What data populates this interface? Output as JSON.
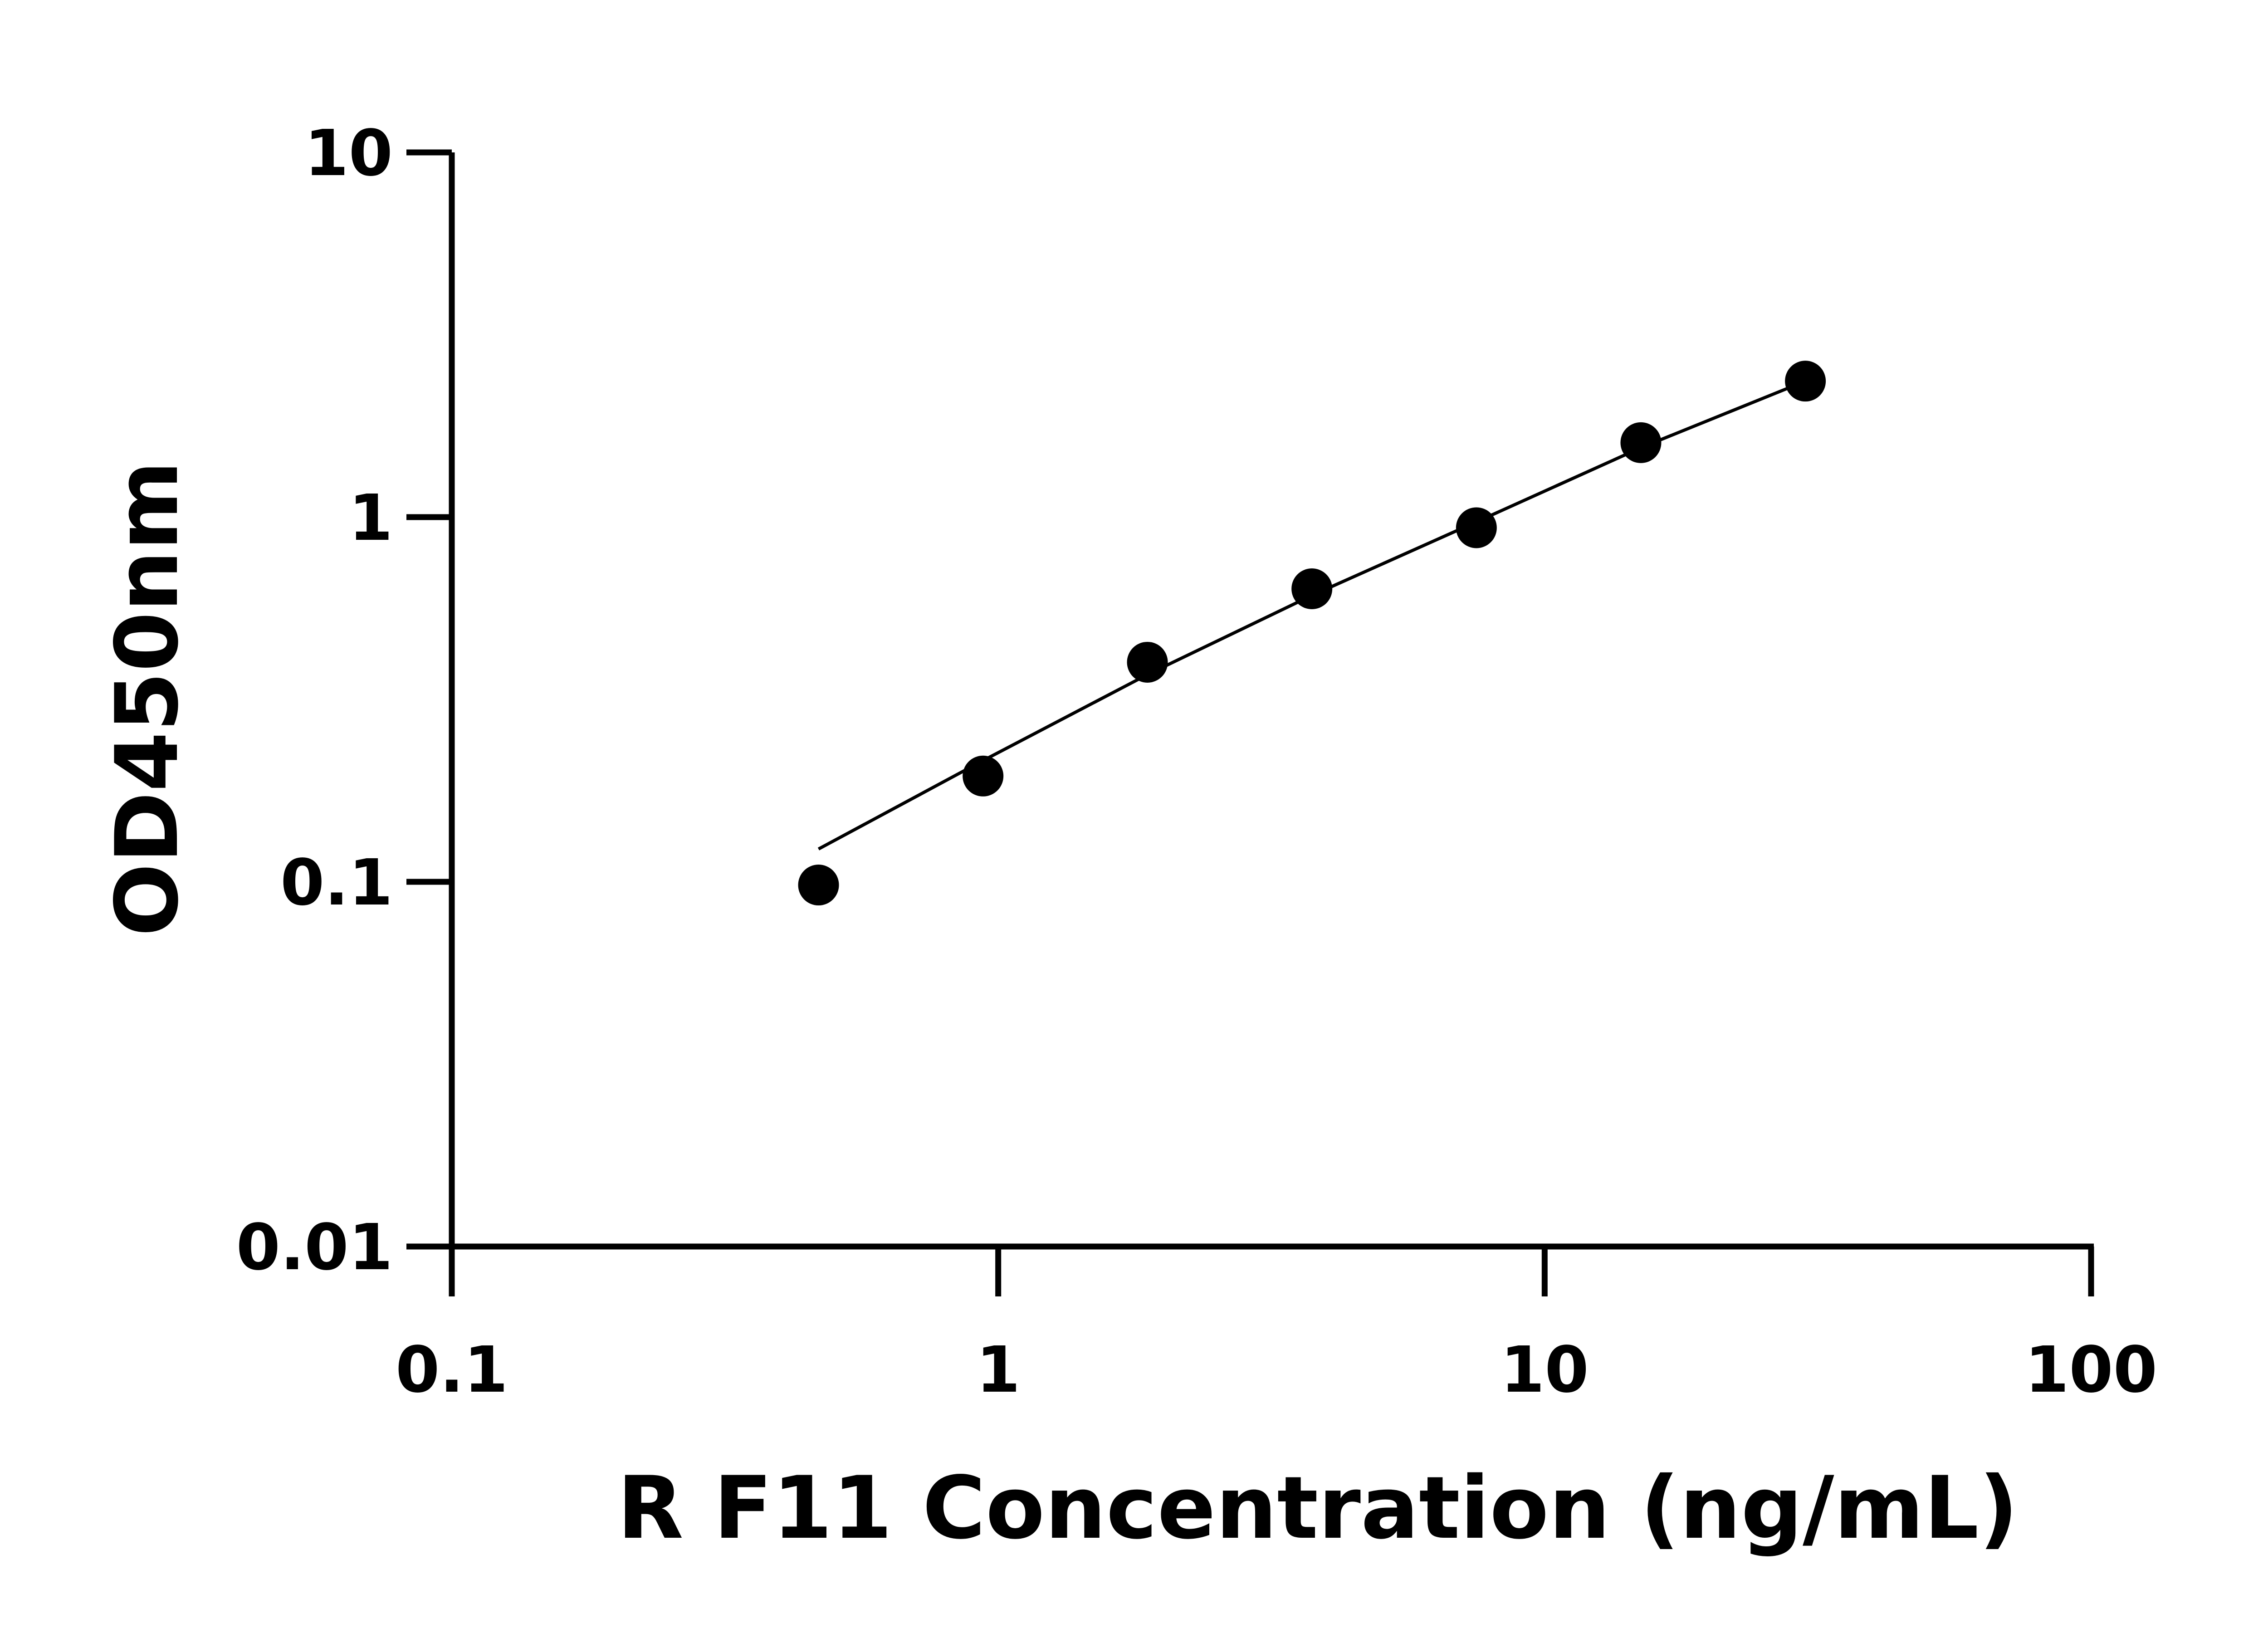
{
  "chart_data": {
    "type": "scatter",
    "title": "",
    "xlabel": "R F11 Concentration (ng/mL)",
    "ylabel": "OD450nm",
    "x_scale": "log",
    "y_scale": "log",
    "xlim": [
      0.1,
      100
    ],
    "ylim": [
      0.01,
      10
    ],
    "x_ticks": [
      0.1,
      1,
      10,
      100
    ],
    "x_tick_labels": [
      "0.1",
      "1",
      "10",
      "100"
    ],
    "y_ticks": [
      0.01,
      0.1,
      1,
      10
    ],
    "y_tick_labels": [
      "0.01",
      "0.1",
      "1",
      "10"
    ],
    "grid": false,
    "legend": "none",
    "points": {
      "x": [
        0.469,
        0.938,
        1.875,
        3.75,
        7.5,
        15,
        30
      ],
      "y": [
        0.098,
        0.195,
        0.4,
        0.636,
        0.935,
        1.6,
        2.36
      ]
    },
    "fit_curve": {
      "x": [
        0.469,
        0.938,
        1.875,
        3.75,
        7.5,
        15,
        30
      ],
      "y": [
        0.123,
        0.215,
        0.37,
        0.61,
        0.97,
        1.55,
        2.36
      ]
    },
    "colors": {
      "points": "#000000",
      "line": "#000000",
      "axes": "#000000"
    }
  }
}
